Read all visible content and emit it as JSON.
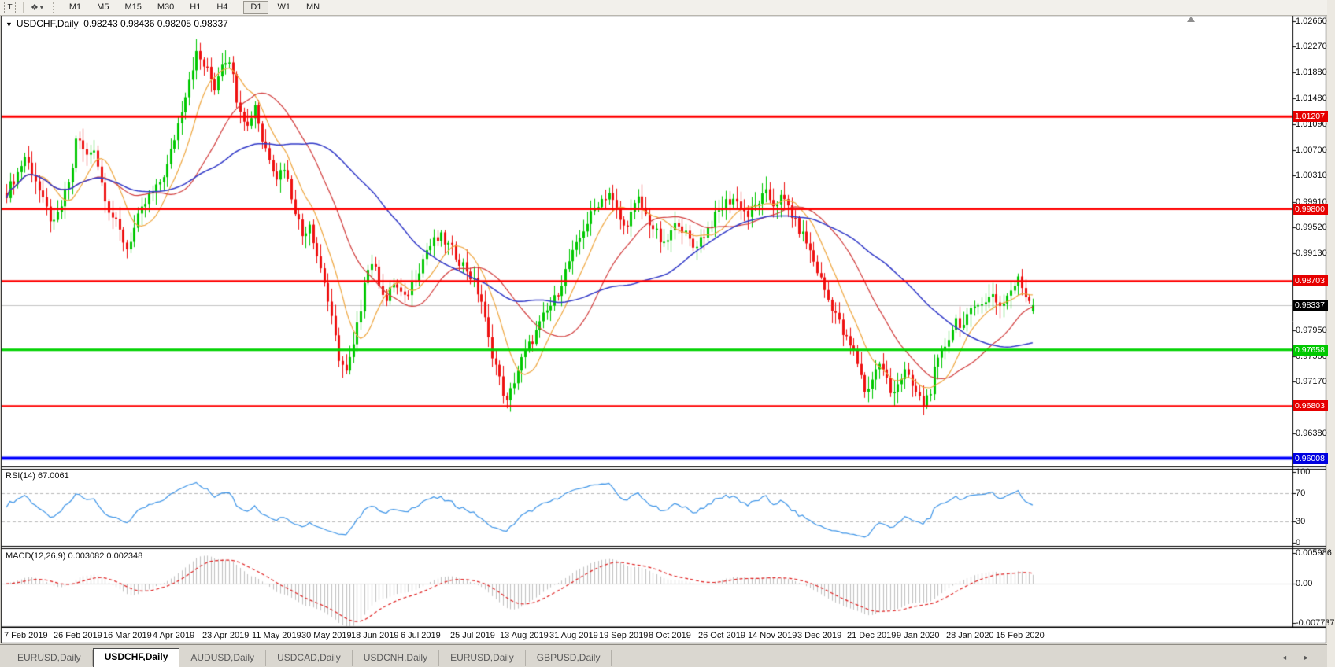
{
  "toolbar": {
    "text_tool_glyph": "T",
    "palette_icon_glyph": "❖",
    "caret_glyph": "▾",
    "timeframes": [
      "M1",
      "M5",
      "M15",
      "M30",
      "H1",
      "H4",
      "D1",
      "W1",
      "MN"
    ],
    "active_timeframe": "D1"
  },
  "chart": {
    "title": "USDCHF,Daily",
    "title_caret": "▼",
    "ohlc_text": "0.98243 0.98436 0.98205 0.98337"
  },
  "rsi_panel": {
    "label": "RSI(14) 67.0061"
  },
  "macd_panel": {
    "label": "MACD(12,26,9) 0.003082 0.002348"
  },
  "tabbar": {
    "tabs": [
      {
        "label": "EURUSD,Daily",
        "active": false
      },
      {
        "label": "USDCHF,Daily",
        "active": true
      },
      {
        "label": "AUDUSD,Daily",
        "active": false
      },
      {
        "label": "USDCAD,Daily",
        "active": false
      },
      {
        "label": "USDCNH,Daily",
        "active": false
      },
      {
        "label": "EURUSD,Daily",
        "active": false
      },
      {
        "label": "GBPUSD,Daily",
        "active": false
      }
    ],
    "scroll_arrows": "◂ ▸"
  },
  "chart_data": {
    "type": "candlestick",
    "symbol": "USDCHF",
    "timeframe": "Daily",
    "last_ohlc": {
      "open": 0.98243,
      "high": 0.98436,
      "low": 0.98205,
      "close": 0.98337
    },
    "current_price": 0.98337,
    "ylim": [
      0.9583,
      1.0272
    ],
    "y_axis_ticks": [
      "1.02660",
      "1.02270",
      "1.01880",
      "1.01480",
      "1.01090",
      "1.00700",
      "1.00310",
      "0.99910",
      "0.99520",
      "0.99130",
      "0.97950",
      "0.97560",
      "0.97170",
      "0.96380"
    ],
    "price_level_lines": [
      {
        "price": 1.01207,
        "label": "1.01207",
        "color": "#FF0000",
        "box_color": "#E60000",
        "width": 3
      },
      {
        "price": 0.998,
        "label": "0.99800",
        "color": "#FF0000",
        "box_color": "#E60000",
        "width": 2.5
      },
      {
        "price": 0.98703,
        "label": "0.98703",
        "color": "#FF0000",
        "box_color": "#E60000",
        "width": 2.5
      },
      {
        "price": 0.97658,
        "label": "0.97658",
        "color": "#00D200",
        "box_color": "#00C800",
        "width": 3
      },
      {
        "price": 0.96803,
        "label": "0.96803",
        "color": "#FF0000",
        "box_color": "#E60000",
        "width": 2
      },
      {
        "price": 0.96008,
        "label": "0.96008",
        "color": "#0000FF",
        "box_color": "#0000E0",
        "width": 4
      }
    ],
    "current_price_box": {
      "label": "0.98337",
      "box_color": "#000000",
      "line_color": "#C4C4C4"
    },
    "x_labels": [
      "7 Feb 2019",
      "26 Feb 2019",
      "16 Mar 2019",
      "4 Apr 2019",
      "23 Apr 2019",
      "11 May 2019",
      "30 May 2019",
      "18 Jun 2019",
      "6 Jul 2019",
      "25 Jul 2019",
      "13 Aug 2019",
      "31 Aug 2019",
      "19 Sep 2019",
      "8 Oct 2019",
      "26 Oct 2019",
      "14 Nov 2019",
      "3 Dec 2019",
      "21 Dec 2019",
      "9 Jan 2020",
      "28 Jan 2020",
      "15 Feb 2020"
    ],
    "num_candles": 282,
    "candle_up_color": "#00C800",
    "candle_down_color": "#EE1111",
    "close_path_anchors": [
      [
        0,
        1.0005
      ],
      [
        3,
        1.0035
      ],
      [
        5,
        1.006
      ],
      [
        8,
        1.0025
      ],
      [
        10,
        0.999
      ],
      [
        13,
        0.9955
      ],
      [
        15,
        0.9985
      ],
      [
        18,
        1.004
      ],
      [
        19,
        1.009
      ],
      [
        22,
        1.006
      ],
      [
        24,
        1.0075
      ],
      [
        26,
        1.002
      ],
      [
        28,
        0.998
      ],
      [
        31,
        0.9945
      ],
      [
        33,
        0.992
      ],
      [
        36,
        0.9965
      ],
      [
        39,
        1.0
      ],
      [
        41,
        1.001
      ],
      [
        44,
        1.0045
      ],
      [
        47,
        1.011
      ],
      [
        50,
        1.018
      ],
      [
        52,
        1.0215
      ],
      [
        55,
        1.019
      ],
      [
        57,
        1.0165
      ],
      [
        59,
        1.0205
      ],
      [
        61,
        1.021
      ],
      [
        63,
        1.015
      ],
      [
        66,
        1.0105
      ],
      [
        68,
        1.014
      ],
      [
        70,
        1.0085
      ],
      [
        72,
        1.006
      ],
      [
        74,
        1.003
      ],
      [
        76,
        1.0045
      ],
      [
        78,
        1.0
      ],
      [
        81,
        0.994
      ],
      [
        83,
        0.996
      ],
      [
        85,
        0.991
      ],
      [
        87,
        0.987
      ],
      [
        89,
        0.981
      ],
      [
        91,
        0.9755
      ],
      [
        93,
        0.973
      ],
      [
        95,
        0.977
      ],
      [
        97,
        0.983
      ],
      [
        98,
        0.9875
      ],
      [
        100,
        0.99
      ],
      [
        102,
        0.987
      ],
      [
        104,
        0.984
      ],
      [
        106,
        0.9868
      ],
      [
        109,
        0.9842
      ],
      [
        111,
        0.9866
      ],
      [
        113,
        0.989
      ],
      [
        115,
        0.9918
      ],
      [
        117,
        0.993
      ],
      [
        119,
        0.9936
      ],
      [
        122,
        0.9918
      ],
      [
        124,
        0.9902
      ],
      [
        126,
        0.9888
      ],
      [
        128,
        0.9868
      ],
      [
        130,
        0.984
      ],
      [
        132,
        0.978
      ],
      [
        134,
        0.9742
      ],
      [
        135,
        0.972
      ],
      [
        137,
        0.9684
      ],
      [
        139,
        0.972
      ],
      [
        141,
        0.975
      ],
      [
        143,
        0.9772
      ],
      [
        145,
        0.9792
      ],
      [
        147,
        0.9815
      ],
      [
        150,
        0.9842
      ],
      [
        152,
        0.987
      ],
      [
        154,
        0.99
      ],
      [
        156,
        0.9922
      ],
      [
        158,
        0.995
      ],
      [
        160,
        0.997
      ],
      [
        162,
        0.999
      ],
      [
        165,
        1.0005
      ],
      [
        167,
        0.9975
      ],
      [
        169,
        0.9952
      ],
      [
        171,
        0.9972
      ],
      [
        173,
        0.9994
      ],
      [
        175,
        0.997
      ],
      [
        178,
        0.9942
      ],
      [
        180,
        0.9922
      ],
      [
        182,
        0.9944
      ],
      [
        184,
        0.9962
      ],
      [
        186,
        0.994
      ],
      [
        188,
        0.9922
      ],
      [
        191,
        0.9942
      ],
      [
        193,
        0.996
      ],
      [
        195,
        0.9976
      ],
      [
        197,
        0.999
      ],
      [
        199,
        0.9996
      ],
      [
        201,
        0.9984
      ],
      [
        203,
        0.997
      ],
      [
        206,
        0.9992
      ],
      [
        208,
        1.0002
      ],
      [
        210,
        0.9988
      ],
      [
        212,
        0.9996
      ],
      [
        214,
        0.9984
      ],
      [
        216,
        0.9958
      ],
      [
        219,
        0.993
      ],
      [
        221,
        0.99
      ],
      [
        223,
        0.9872
      ],
      [
        225,
        0.9842
      ],
      [
        227,
        0.9822
      ],
      [
        229,
        0.979
      ],
      [
        232,
        0.9762
      ],
      [
        234,
        0.973
      ],
      [
        235,
        0.97
      ],
      [
        237,
        0.9722
      ],
      [
        239,
        0.9746
      ],
      [
        241,
        0.972
      ],
      [
        242,
        0.97
      ],
      [
        244,
        0.9716
      ],
      [
        246,
        0.9732
      ],
      [
        247,
        0.972
      ],
      [
        249,
        0.97
      ],
      [
        251,
        0.9682
      ],
      [
        253,
        0.9706
      ],
      [
        254,
        0.9732
      ],
      [
        256,
        0.976
      ],
      [
        258,
        0.9786
      ],
      [
        260,
        0.9812
      ],
      [
        262,
        0.9802
      ],
      [
        264,
        0.9822
      ],
      [
        266,
        0.9842
      ],
      [
        268,
        0.9836
      ],
      [
        270,
        0.9852
      ],
      [
        272,
        0.9832
      ],
      [
        275,
        0.9856
      ],
      [
        277,
        0.9872
      ],
      [
        279,
        0.985
      ],
      [
        281,
        0.98337
      ]
    ],
    "moving_averages": [
      {
        "period": 10,
        "color": "#EFA53C"
      },
      {
        "period": 25,
        "color": "#D23C3C"
      },
      {
        "period": 50,
        "color": "#3038C8"
      }
    ],
    "rsi": {
      "period": 14,
      "current": 67.0061,
      "color": "#3E95E8",
      "levels": [
        70,
        30
      ],
      "axis_ticks": [
        "100",
        "70",
        "30",
        "0"
      ],
      "range": [
        0,
        100
      ]
    },
    "macd": {
      "fast": 12,
      "slow": 26,
      "signal_period": 9,
      "current_macd": 0.003082,
      "current_signal": 0.002348,
      "histogram_color": "#C0C0C0",
      "signal_color": "#E02020",
      "axis_ticks": [
        {
          "label": "0.005986",
          "value": 0.005986
        },
        {
          "label": "0.00",
          "value": 0.0
        },
        {
          "label": "-0.007737",
          "value": -0.007737
        }
      ]
    }
  }
}
